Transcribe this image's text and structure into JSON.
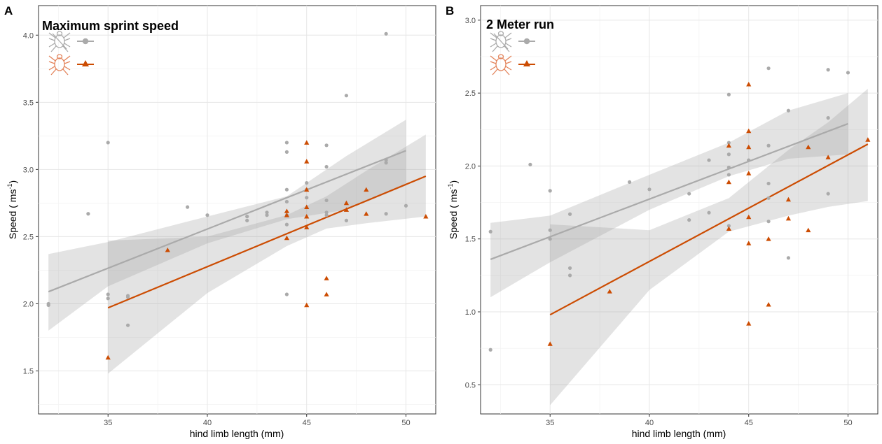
{
  "colors": {
    "unfed": "#aaaaaa",
    "fed": "#cc4c02",
    "ribbon": "#999999",
    "grid": "#e6e6e6"
  },
  "legend": {
    "entries": [
      {
        "icon": "tick-icon-gray",
        "marker": "circle",
        "color": "#aaaaaa"
      },
      {
        "icon": "tick-icon-orange",
        "marker": "triangle",
        "color": "#cc4c02"
      }
    ],
    "placement": "top-left"
  },
  "chart_data": [
    {
      "type": "scatter",
      "panel_tag": "A",
      "title": "Maximum sprint speed",
      "xlabel": "hind limb length (mm)",
      "ylabel": "Speed ( ms",
      "ylabel_sup": "-1",
      "ylabel_close": ")",
      "xlim": [
        31.5,
        51.5
      ],
      "ylim": [
        1.18,
        4.22
      ],
      "x_ticks": [
        35,
        40,
        45,
        50
      ],
      "y_ticks": [
        1.5,
        2.0,
        2.5,
        3.0,
        3.5,
        4.0
      ],
      "y_tick_labels": [
        "1.5",
        "2.0",
        "2.5",
        "3.0",
        "3.5",
        "4.0"
      ],
      "grid": true,
      "series": [
        {
          "marker": "circle",
          "color": "#aaaaaa",
          "points": [
            [
              32,
              2.0
            ],
            [
              32,
              1.99
            ],
            [
              34,
              2.67
            ],
            [
              35,
              3.2
            ],
            [
              35,
              2.07
            ],
            [
              35,
              2.04
            ],
            [
              36,
              2.06
            ],
            [
              36,
              2.05
            ],
            [
              36,
              1.84
            ],
            [
              39,
              2.72
            ],
            [
              40,
              2.66
            ],
            [
              42,
              2.65
            ],
            [
              42,
              2.62
            ],
            [
              43,
              2.68
            ],
            [
              43,
              2.66
            ],
            [
              44,
              3.2
            ],
            [
              44,
              3.13
            ],
            [
              44,
              2.85
            ],
            [
              44,
              2.76
            ],
            [
              44,
              2.66
            ],
            [
              44,
              2.59
            ],
            [
              44,
              2.07
            ],
            [
              45,
              2.9
            ],
            [
              45,
              2.85
            ],
            [
              45,
              2.79
            ],
            [
              46,
              3.18
            ],
            [
              46,
              3.02
            ],
            [
              46,
              2.77
            ],
            [
              46,
              2.68
            ],
            [
              46,
              2.66
            ],
            [
              47,
              3.55
            ],
            [
              47,
              2.62
            ],
            [
              49,
              4.01
            ],
            [
              49,
              3.07
            ],
            [
              49,
              3.05
            ],
            [
              49,
              2.67
            ],
            [
              50,
              2.73
            ]
          ],
          "fit": {
            "x0": 32,
            "y0": 2.09,
            "x1": 50,
            "y1": 3.14
          },
          "ci": [
            [
              32,
              1.8,
              2.37
            ],
            [
              35,
              2.13,
              2.46
            ],
            [
              40,
              2.45,
              2.65
            ],
            [
              44,
              2.63,
              2.8
            ],
            [
              47,
              2.7,
              3.1
            ],
            [
              50,
              2.88,
              3.37
            ]
          ]
        },
        {
          "marker": "triangle",
          "color": "#cc4c02",
          "points": [
            [
              35,
              1.6
            ],
            [
              38,
              2.4
            ],
            [
              44,
              2.69
            ],
            [
              44,
              2.66
            ],
            [
              44,
              2.49
            ],
            [
              45,
              3.2
            ],
            [
              45,
              3.06
            ],
            [
              45,
              2.85
            ],
            [
              45,
              2.72
            ],
            [
              45,
              2.65
            ],
            [
              45,
              2.57
            ],
            [
              45,
              1.99
            ],
            [
              46,
              2.19
            ],
            [
              46,
              2.07
            ],
            [
              47,
              2.75
            ],
            [
              47,
              2.7
            ],
            [
              48,
              2.85
            ],
            [
              48,
              2.67
            ],
            [
              51,
              2.65
            ]
          ],
          "fit": {
            "x0": 35,
            "y0": 1.97,
            "x1": 51,
            "y1": 2.95
          },
          "ci": [
            [
              35,
              1.48,
              2.47
            ],
            [
              40,
              2.08,
              2.5
            ],
            [
              44,
              2.43,
              2.66
            ],
            [
              46,
              2.56,
              2.8
            ],
            [
              48,
              2.6,
              2.99
            ],
            [
              51,
              2.65,
              3.26
            ]
          ]
        }
      ]
    },
    {
      "type": "scatter",
      "panel_tag": "B",
      "title": "2 Meter run",
      "xlabel": "hind limb length (mm)",
      "ylabel": "Speed ( ms",
      "ylabel_sup": "-1",
      "ylabel_close": ")",
      "xlim": [
        31.5,
        51.5
      ],
      "ylim": [
        0.3,
        3.1
      ],
      "x_ticks": [
        35,
        40,
        45,
        50
      ],
      "y_ticks": [
        0.5,
        1.0,
        1.5,
        2.0,
        2.5,
        3.0
      ],
      "y_tick_labels": [
        "0.5",
        "1.0",
        "1.5",
        "2.0",
        "2.5",
        "3.0"
      ],
      "grid": true,
      "series": [
        {
          "marker": "circle",
          "color": "#aaaaaa",
          "points": [
            [
              32,
              1.55
            ],
            [
              32,
              0.74
            ],
            [
              34,
              2.01
            ],
            [
              35,
              1.83
            ],
            [
              35,
              1.56
            ],
            [
              35,
              1.5
            ],
            [
              36,
              1.67
            ],
            [
              36,
              1.3
            ],
            [
              36,
              1.25
            ],
            [
              39,
              1.89
            ],
            [
              40,
              1.84
            ],
            [
              42,
              1.81
            ],
            [
              42,
              1.63
            ],
            [
              43,
              2.04
            ],
            [
              43,
              1.68
            ],
            [
              44,
              2.49
            ],
            [
              44,
              2.16
            ],
            [
              44,
              2.08
            ],
            [
              44,
              1.99
            ],
            [
              44,
              1.94
            ],
            [
              44,
              1.59
            ],
            [
              45,
              2.04
            ],
            [
              46,
              2.67
            ],
            [
              46,
              2.14
            ],
            [
              46,
              1.88
            ],
            [
              46,
              1.78
            ],
            [
              46,
              1.62
            ],
            [
              47,
              2.38
            ],
            [
              47,
              1.37
            ],
            [
              49,
              2.66
            ],
            [
              49,
              2.33
            ],
            [
              49,
              1.81
            ],
            [
              50,
              2.64
            ]
          ],
          "fit": {
            "x0": 32,
            "y0": 1.36,
            "x1": 50,
            "y1": 2.29
          },
          "ci": [
            [
              32,
              1.1,
              1.61
            ],
            [
              35,
              1.34,
              1.66
            ],
            [
              40,
              1.7,
              1.94
            ],
            [
              44,
              1.93,
              2.16
            ],
            [
              47,
              2.05,
              2.38
            ],
            [
              50,
              2.08,
              2.5
            ]
          ]
        },
        {
          "marker": "triangle",
          "color": "#cc4c02",
          "points": [
            [
              35,
              0.78
            ],
            [
              38,
              1.14
            ],
            [
              44,
              2.14
            ],
            [
              44,
              1.89
            ],
            [
              44,
              1.57
            ],
            [
              45,
              2.56
            ],
            [
              45,
              2.24
            ],
            [
              45,
              2.13
            ],
            [
              45,
              1.95
            ],
            [
              45,
              1.65
            ],
            [
              45,
              1.47
            ],
            [
              45,
              0.92
            ],
            [
              46,
              1.5
            ],
            [
              46,
              1.05
            ],
            [
              47,
              1.77
            ],
            [
              47,
              1.64
            ],
            [
              48,
              2.13
            ],
            [
              48,
              1.56
            ],
            [
              49,
              2.06
            ],
            [
              51,
              2.18
            ]
          ],
          "fit": {
            "x0": 35,
            "y0": 0.98,
            "x1": 51,
            "y1": 2.15
          },
          "ci": [
            [
              35,
              0.36,
              1.6
            ],
            [
              40,
              1.15,
              1.56
            ],
            [
              44,
              1.55,
              1.78
            ],
            [
              47,
              1.66,
              2.11
            ],
            [
              49,
              1.72,
              2.3
            ],
            [
              51,
              1.76,
              2.53
            ]
          ]
        }
      ]
    }
  ]
}
